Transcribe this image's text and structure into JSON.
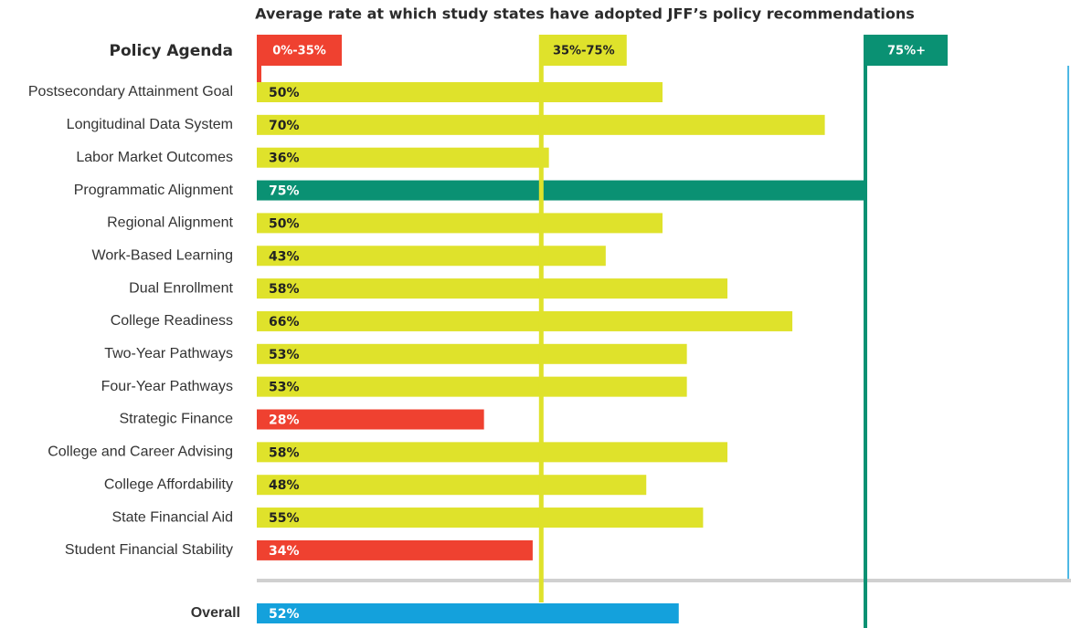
{
  "chart_data": {
    "type": "bar",
    "orientation": "horizontal",
    "title": "Average rate at which study states have adopted JFF’s policy recommendations",
    "category_header": "Policy Agenda",
    "categories": [
      "Postsecondary Attainment Goal",
      "Longitudinal Data System",
      "Labor Market Outcomes",
      "Programmatic Alignment",
      "Regional Alignment",
      "Work-Based Learning",
      "Dual Enrollment",
      "College Readiness",
      "Two-Year Pathways",
      "Four-Year Pathways",
      "Strategic Finance",
      "College and Career Advising",
      "College Affordability",
      "State Financial Aid",
      "Student Financial Stability"
    ],
    "values": [
      50,
      70,
      36,
      75,
      50,
      43,
      58,
      66,
      53,
      53,
      28,
      58,
      48,
      55,
      34
    ],
    "value_labels": [
      "50%",
      "70%",
      "36%",
      "75%",
      "50%",
      "43%",
      "58%",
      "66%",
      "53%",
      "53%",
      "28%",
      "58%",
      "48%",
      "55%",
      "34%"
    ],
    "thresholds": [
      {
        "label": "0%-35%",
        "value": 0,
        "color": "#ef4130",
        "text_color": "#ffffff"
      },
      {
        "label": "35%-75%",
        "value": 35,
        "color": "#dfe22b",
        "text_color": "#222222"
      },
      {
        "label": "75%+",
        "value": 75,
        "color": "#0a9173",
        "text_color": "#ffffff"
      }
    ],
    "overall": {
      "label": "Overall",
      "value": 52,
      "value_label": "52%",
      "color": "#14a1dc"
    },
    "xlim": [
      0,
      100
    ]
  }
}
